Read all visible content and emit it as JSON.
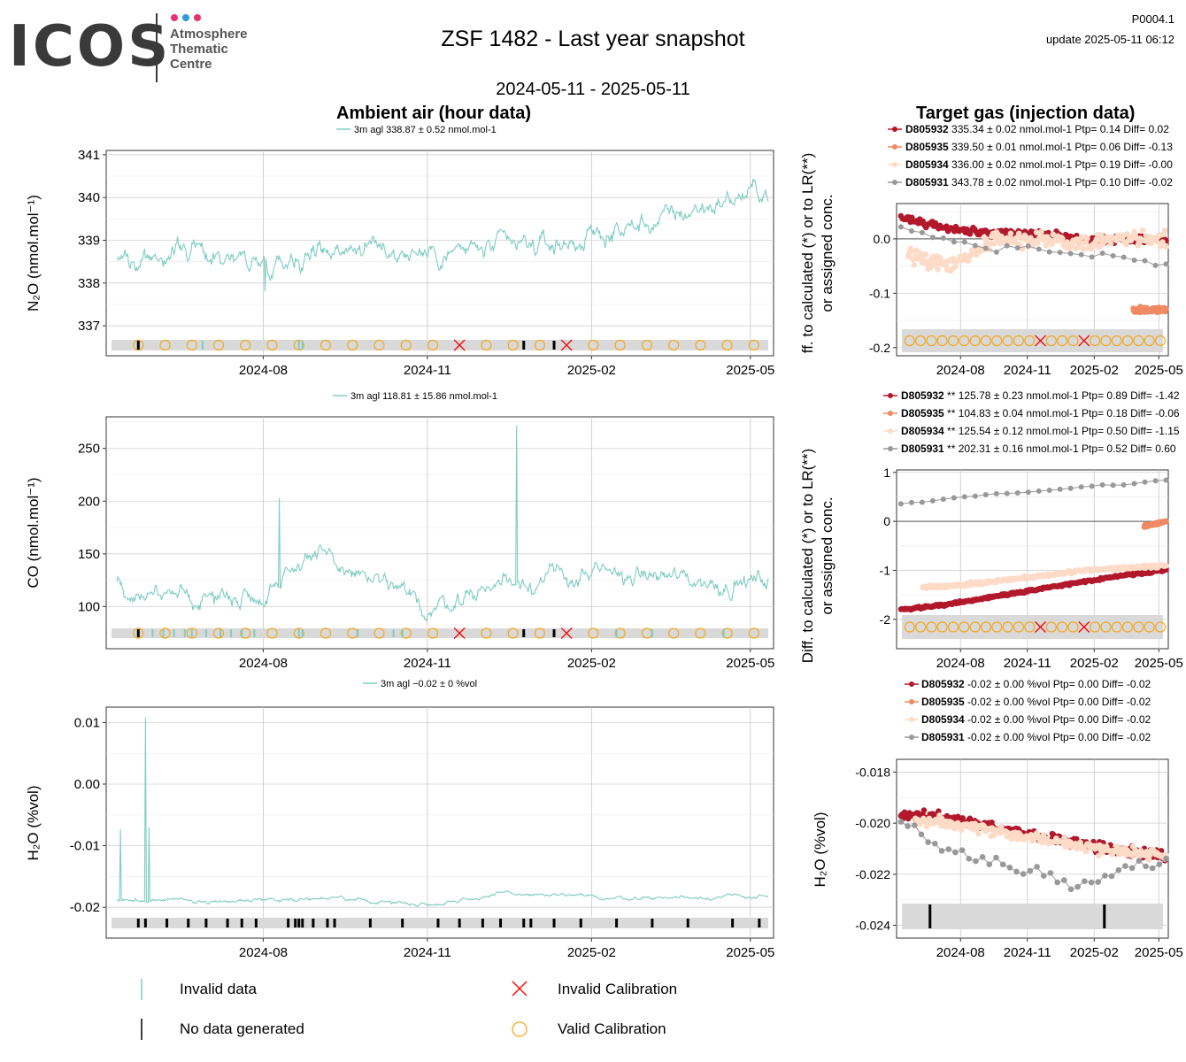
{
  "header": {
    "logo_text": "ICOS",
    "logo_subtitle": [
      "Atmosphere",
      "Thematic",
      "Centre"
    ],
    "logo_dot_colors": [
      "#e6336f",
      "#2b9bd8",
      "#e6336f"
    ],
    "title": "ZSF 1482 - Last year snapshot",
    "date_range": "2024-05-11 - 2025-05-11",
    "code": "P0004.1",
    "update": "update  2025-05-11 06:12"
  },
  "sections": {
    "ambient_title": "Ambient air (hour data)",
    "target_title": "Target gas (injection data)"
  },
  "colors": {
    "ambient_series": "#7ecdc2",
    "target_series": [
      "#b2182b",
      "#ef8a62",
      "#fddbc7",
      "#999999"
    ],
    "invalid_cal": "#ff0000",
    "valid_cal": "#f4a81d"
  },
  "x_axis_ticks": [
    "2024-08",
    "2024-11",
    "2025-02",
    "2025-05"
  ],
  "chart_data": [
    {
      "type": "line",
      "panel": "ambient-n2o",
      "ylabel": "N2O (nmol.mol-1)",
      "legend": "3m agl 338.87 ± 0.52 nmol.mol-1",
      "ylim": [
        336.3,
        341.1
      ],
      "yticks": [
        "337",
        "338",
        "339",
        "340",
        "341"
      ],
      "series": [
        {
          "x": [
            "2024-05-11",
            "2024-06-15",
            "2024-08-01",
            "2024-09-15",
            "2024-11-01",
            "2024-12-15",
            "2025-01-15",
            "2025-02-15",
            "2025-03-15",
            "2025-04-15",
            "2025-05-11"
          ],
          "y": [
            338.6,
            338.8,
            338.5,
            338.9,
            338.7,
            338.8,
            338.9,
            339.2,
            339.5,
            339.9,
            340.2
          ]
        }
      ]
    },
    {
      "type": "line",
      "panel": "ambient-co",
      "ylabel": "CO (nmol.mol-1)",
      "legend": "3m agl 118.81 ± 15.86 nmol.mol-1",
      "ylim": [
        60,
        280
      ],
      "yticks": [
        "100",
        "150",
        "200",
        "250"
      ],
      "series": [
        {
          "x": [
            "2024-05-11",
            "2024-06-15",
            "2024-08-01",
            "2024-08-25",
            "2024-10-01",
            "2024-11-01",
            "2024-12-15",
            "2025-02-15",
            "2025-03-15",
            "2025-04-15",
            "2025-05-11"
          ],
          "y": [
            120,
            108,
            112,
            150,
            125,
            97,
            125,
            130,
            128,
            122,
            125
          ]
        }
      ]
    },
    {
      "type": "line",
      "panel": "ambient-h2o",
      "ylabel": "H2O (%vol)",
      "legend": "3m agl −0.02 ± 0 %vol",
      "ylim": [
        -0.025,
        0.0125
      ],
      "yticks": [
        "0.01",
        "0.00",
        "-0.01",
        "-0.02"
      ],
      "series": [
        {
          "x": [
            "2024-05-11",
            "2024-07-01",
            "2024-09-01",
            "2024-11-01",
            "2024-12-15",
            "2025-02-15",
            "2025-05-11"
          ],
          "y": [
            -0.0188,
            -0.019,
            -0.0185,
            -0.0195,
            -0.0178,
            -0.0185,
            -0.0182
          ]
        }
      ]
    },
    {
      "type": "scatter",
      "panel": "target-n2o",
      "ylabel": "Diff. to calculated (*) or to LR(**) or assigned conc.",
      "ylim": [
        -0.215,
        0.065
      ],
      "yticks": [
        "0.0",
        "-0.1",
        "-0.2"
      ],
      "legend": [
        {
          "id": "D805932",
          "text": "335.34 ± 0.02 nmol.mol-1 Ptp= 0.14 Diff= 0.02"
        },
        {
          "id": "D805935",
          "text": "339.50 ± 0.01 nmol.mol-1 Ptp= 0.06 Diff= -0.13"
        },
        {
          "id": "D805934",
          "text": "336.00 ± 0.02 nmol.mol-1 Ptp= 0.19 Diff= -0.00"
        },
        {
          "id": "D805931",
          "text": "343.78 ± 0.02 nmol.mol-1 Ptp= 0.10 Diff= -0.02"
        }
      ],
      "series": [
        {
          "name": "D805932",
          "y_trend": [
            0.04,
            0.02,
            0.01,
            0.01,
            0.0,
            0.0,
            0.0
          ]
        },
        {
          "name": "D805935",
          "y_trend": [
            -0.13,
            -0.13,
            -0.13
          ]
        },
        {
          "name": "D805934",
          "y_trend": [
            -0.03,
            -0.05,
            0.0,
            0.0,
            -0.01,
            0.0,
            0.0
          ]
        },
        {
          "name": "D805931",
          "y_trend": [
            0.02,
            0.0,
            -0.02,
            -0.01,
            -0.03,
            -0.03,
            -0.05
          ]
        }
      ]
    },
    {
      "type": "scatter",
      "panel": "target-co",
      "ylabel": "Diff. to calculated (*) or to LR(**) or assigned conc.",
      "ylim": [
        -2.6,
        1.05
      ],
      "yticks": [
        "1",
        "0",
        "-1",
        "-2"
      ],
      "legend": [
        {
          "id": "D805932",
          "text": "** 125.78 ± 0.23 nmol.mol-1 Ptp= 0.89 Diff= -1.42"
        },
        {
          "id": "D805935",
          "text": "** 104.83 ± 0.04 nmol.mol-1 Ptp= 0.18 Diff= -0.06"
        },
        {
          "id": "D805934",
          "text": "** 125.54 ± 0.12 nmol.mol-1 Ptp= 0.50 Diff= -1.15"
        },
        {
          "id": "D805931",
          "text": "** 202.31 ± 0.16 nmol.mol-1 Ptp= 0.52 Diff= 0.60"
        }
      ],
      "series": [
        {
          "name": "D805932",
          "y_trend": [
            -1.8,
            -1.7,
            -1.55,
            -1.4,
            -1.25,
            -1.1,
            -1.0
          ]
        },
        {
          "name": "D805935",
          "y_trend": [
            -0.1,
            -0.05,
            0.0
          ]
        },
        {
          "name": "D805934",
          "y_trend": [
            -1.35,
            -1.3,
            -1.2,
            -1.1,
            -1.0,
            -0.95,
            -0.9
          ]
        },
        {
          "name": "D805931",
          "y_trend": [
            0.35,
            0.45,
            0.55,
            0.6,
            0.7,
            0.75,
            0.85
          ]
        }
      ]
    },
    {
      "type": "scatter",
      "panel": "target-h2o",
      "ylabel": "H2O (%vol)",
      "ylim": [
        -0.0245,
        -0.0175
      ],
      "yticks": [
        "-0.018",
        "-0.020",
        "-0.022",
        "-0.024"
      ],
      "legend": [
        {
          "id": "D805932",
          "text": "-0.02 ± 0.00 %vol Ptp= 0.00 Diff= -0.02"
        },
        {
          "id": "D805935",
          "text": "-0.02 ± 0.00 %vol Ptp= 0.00 Diff= -0.02"
        },
        {
          "id": "D805934",
          "text": "-0.02 ± 0.00 %vol Ptp= 0.00 Diff= -0.02"
        },
        {
          "id": "D805931",
          "text": "-0.02 ± 0.00 %vol Ptp= 0.00 Diff= -0.02"
        }
      ],
      "series": [
        {
          "name": "D805932",
          "y_trend": [
            -0.0197,
            -0.0198,
            -0.0201,
            -0.0205,
            -0.0208,
            -0.0211,
            -0.0213
          ]
        },
        {
          "name": "D805934",
          "y_trend": [
            -0.0199,
            -0.02,
            -0.0203,
            -0.0206,
            -0.0209,
            -0.0211,
            -0.0213
          ]
        },
        {
          "name": "D805931",
          "y_trend": [
            -0.02,
            -0.0212,
            -0.0215,
            -0.0218,
            -0.0225,
            -0.0218,
            -0.0215
          ]
        }
      ]
    }
  ],
  "bottom_legend": {
    "invalid_data": "Invalid data",
    "no_data": "No data generated",
    "invalid_cal": "Invalid Calibration",
    "valid_cal": "Valid Calibration"
  }
}
